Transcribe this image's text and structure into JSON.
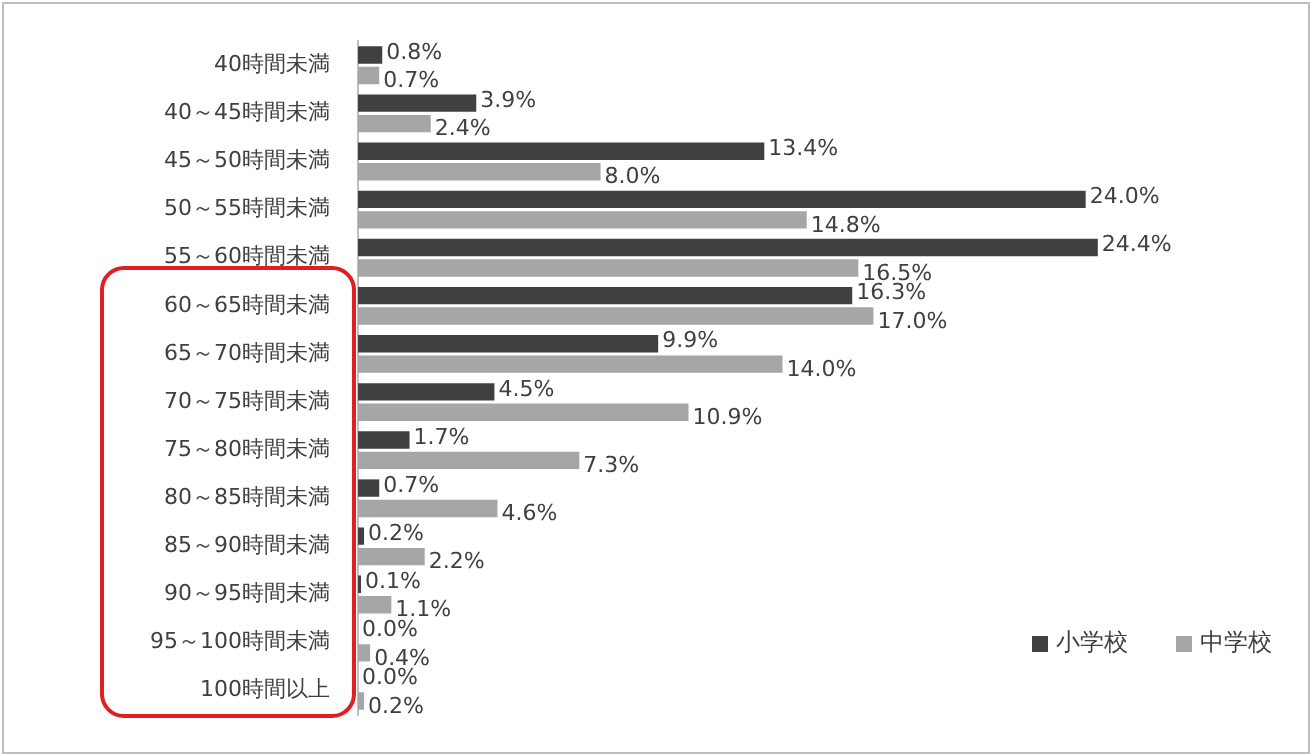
{
  "chart_data": {
    "type": "bar",
    "orientation": "horizontal",
    "legend": "bottom right",
    "categories": [
      "40時間未満",
      "40～45時間未満",
      "45～50時間未満",
      "50～55時間未満",
      "55～60時間未満",
      "60～65時間未満",
      "65～70時間未満",
      "70～75時間未満",
      "75～80時間未満",
      "80～85時間未満",
      "85～90時間未満",
      "90～95時間未満",
      "95～100時間未満",
      "100時間以上"
    ],
    "series": [
      {
        "name": "小学校",
        "color": "#404040",
        "values": [
          0.8,
          3.9,
          13.4,
          24.0,
          24.4,
          16.3,
          9.9,
          4.5,
          1.7,
          0.7,
          0.2,
          0.1,
          0.0,
          0.0
        ],
        "value_labels": [
          "0.8%",
          "3.9%",
          "13.4%",
          "24.0%",
          "24.4%",
          "16.3%",
          "9.9%",
          "4.5%",
          "1.7%",
          "0.7%",
          "0.2%",
          "0.1%",
          "0.0%",
          "0.0%"
        ]
      },
      {
        "name": "中学校",
        "color": "#a6a6a6",
        "values": [
          0.7,
          2.4,
          8.0,
          14.8,
          16.5,
          17.0,
          14.0,
          10.9,
          7.3,
          4.6,
          2.2,
          1.1,
          0.4,
          0.2
        ],
        "value_labels": [
          "0.7%",
          "2.4%",
          "8.0%",
          "14.8%",
          "16.5%",
          "17.0%",
          "14.0%",
          "10.9%",
          "7.3%",
          "4.6%",
          "2.2%",
          "1.1%",
          "0.4%",
          "0.2%"
        ]
      }
    ]
  }
}
